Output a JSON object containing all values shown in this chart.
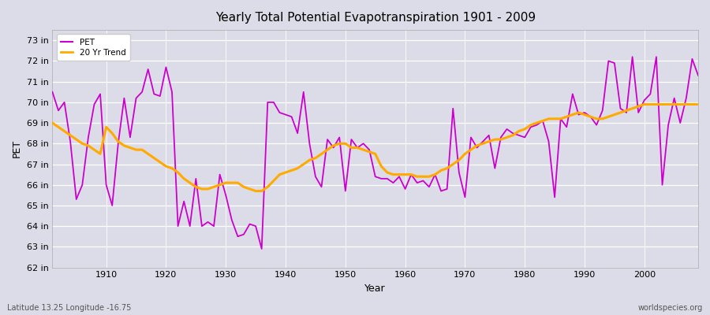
{
  "title": "Yearly Total Potential Evapotranspiration 1901 - 2009",
  "xlabel": "Year",
  "ylabel": "PET",
  "subtitle_left": "Latitude 13.25 Longitude -16.75",
  "subtitle_right": "worldspecies.org",
  "pet_color": "#cc00cc",
  "trend_color": "#ffaa00",
  "background_color": "#dcdce8",
  "plot_bg_color": "#dcdce8",
  "ylim": [
    62,
    73.5
  ],
  "ytick_labels": [
    "62 in",
    "63 in",
    "64 in",
    "65 in",
    "66 in",
    "67 in",
    "68 in",
    "69 in",
    "70 in",
    "71 in",
    "72 in",
    "73 in"
  ],
  "ytick_values": [
    62,
    63,
    64,
    65,
    66,
    67,
    68,
    69,
    70,
    71,
    72,
    73
  ],
  "xlim": [
    1901,
    2009
  ],
  "years": [
    1901,
    1902,
    1903,
    1904,
    1905,
    1906,
    1907,
    1908,
    1909,
    1910,
    1911,
    1912,
    1913,
    1914,
    1915,
    1916,
    1917,
    1918,
    1919,
    1920,
    1921,
    1922,
    1923,
    1924,
    1925,
    1926,
    1927,
    1928,
    1929,
    1930,
    1931,
    1932,
    1933,
    1934,
    1935,
    1936,
    1937,
    1938,
    1939,
    1940,
    1941,
    1942,
    1943,
    1944,
    1945,
    1946,
    1947,
    1948,
    1949,
    1950,
    1951,
    1952,
    1953,
    1954,
    1955,
    1956,
    1957,
    1958,
    1959,
    1960,
    1961,
    1962,
    1963,
    1964,
    1965,
    1966,
    1967,
    1968,
    1969,
    1970,
    1971,
    1972,
    1973,
    1974,
    1975,
    1976,
    1977,
    1978,
    1979,
    1980,
    1981,
    1982,
    1983,
    1984,
    1985,
    1986,
    1987,
    1988,
    1989,
    1990,
    1991,
    1992,
    1993,
    1994,
    1995,
    1996,
    1997,
    1998,
    1999,
    2000,
    2001,
    2002,
    2003,
    2004,
    2005,
    2006,
    2007,
    2008,
    2009
  ],
  "pet_values": [
    70.5,
    69.6,
    70.0,
    68.1,
    65.3,
    66.0,
    68.3,
    69.9,
    70.4,
    66.0,
    65.0,
    68.0,
    70.2,
    68.3,
    70.2,
    70.5,
    71.6,
    70.4,
    70.3,
    71.7,
    70.5,
    64.0,
    65.2,
    64.0,
    66.3,
    64.0,
    64.2,
    64.0,
    66.5,
    65.5,
    64.3,
    63.5,
    63.6,
    64.1,
    64.0,
    62.9,
    70.0,
    70.0,
    69.5,
    69.4,
    69.3,
    68.5,
    70.5,
    68.0,
    66.4,
    65.9,
    68.2,
    67.8,
    68.3,
    65.7,
    68.2,
    67.8,
    68.0,
    67.7,
    66.4,
    66.3,
    66.3,
    66.1,
    66.4,
    65.8,
    66.5,
    66.1,
    66.2,
    65.9,
    66.5,
    65.7,
    65.8,
    69.7,
    66.6,
    65.4,
    68.3,
    67.8,
    68.1,
    68.4,
    66.8,
    68.3,
    68.7,
    68.5,
    68.4,
    68.3,
    68.8,
    68.9,
    69.1,
    68.1,
    65.4,
    69.2,
    68.8,
    70.4,
    69.4,
    69.5,
    69.3,
    68.9,
    69.6,
    72.0,
    71.9,
    69.7,
    69.5,
    72.2,
    69.5,
    70.1,
    70.4,
    72.2,
    66.0,
    68.9,
    70.2,
    69.0,
    70.2,
    72.1,
    71.3
  ],
  "trend_years": [
    1901,
    1902,
    1903,
    1904,
    1905,
    1906,
    1907,
    1908,
    1909,
    1910,
    1911,
    1912,
    1913,
    1914,
    1915,
    1916,
    1917,
    1918,
    1919,
    1920,
    1921,
    1922,
    1923,
    1924,
    1925,
    1926,
    1927,
    1928,
    1929,
    1930,
    1931,
    1932,
    1933,
    1934,
    1935,
    1936,
    1937,
    1938,
    1939,
    1940,
    1941,
    1942,
    1943,
    1944,
    1945,
    1946,
    1947,
    1948,
    1949,
    1950,
    1951,
    1952,
    1953,
    1954,
    1955,
    1956,
    1957,
    1958,
    1959,
    1960,
    1961,
    1962,
    1963,
    1964,
    1965,
    1966,
    1967,
    1968,
    1969,
    1970,
    1971,
    1972,
    1973,
    1974,
    1975,
    1976,
    1977,
    1978,
    1979,
    1980,
    1981,
    1982,
    1983,
    1984,
    1985,
    1986,
    1987,
    1988,
    1989,
    1990,
    1991,
    1992,
    1993,
    1994,
    1995,
    1996,
    1997,
    1998,
    1999,
    2000,
    2001,
    2002,
    2003,
    2004,
    2005,
    2006,
    2007,
    2008,
    2009
  ],
  "trend_values": [
    69.0,
    68.8,
    68.6,
    68.4,
    68.2,
    68.0,
    67.9,
    67.7,
    67.5,
    68.8,
    68.5,
    68.1,
    67.9,
    67.8,
    67.7,
    67.7,
    67.5,
    67.3,
    67.1,
    66.9,
    66.8,
    66.6,
    66.3,
    66.1,
    65.9,
    65.8,
    65.8,
    65.9,
    66.0,
    66.1,
    66.1,
    66.1,
    65.9,
    65.8,
    65.7,
    65.7,
    65.9,
    66.2,
    66.5,
    66.6,
    66.7,
    66.8,
    67.0,
    67.2,
    67.3,
    67.5,
    67.7,
    67.9,
    68.0,
    68.0,
    67.8,
    67.8,
    67.7,
    67.6,
    67.5,
    66.9,
    66.6,
    66.5,
    66.5,
    66.5,
    66.5,
    66.4,
    66.4,
    66.4,
    66.5,
    66.7,
    66.8,
    67.0,
    67.2,
    67.5,
    67.7,
    67.9,
    68.0,
    68.1,
    68.2,
    68.2,
    68.3,
    68.4,
    68.6,
    68.7,
    68.9,
    69.0,
    69.1,
    69.2,
    69.2,
    69.2,
    69.3,
    69.4,
    69.5,
    69.4,
    69.3,
    69.2,
    69.2,
    69.3,
    69.4,
    69.5,
    69.6,
    69.7,
    69.8,
    69.9,
    69.9,
    69.9,
    69.9,
    69.9,
    69.9,
    69.9,
    69.9,
    69.9,
    69.9
  ]
}
